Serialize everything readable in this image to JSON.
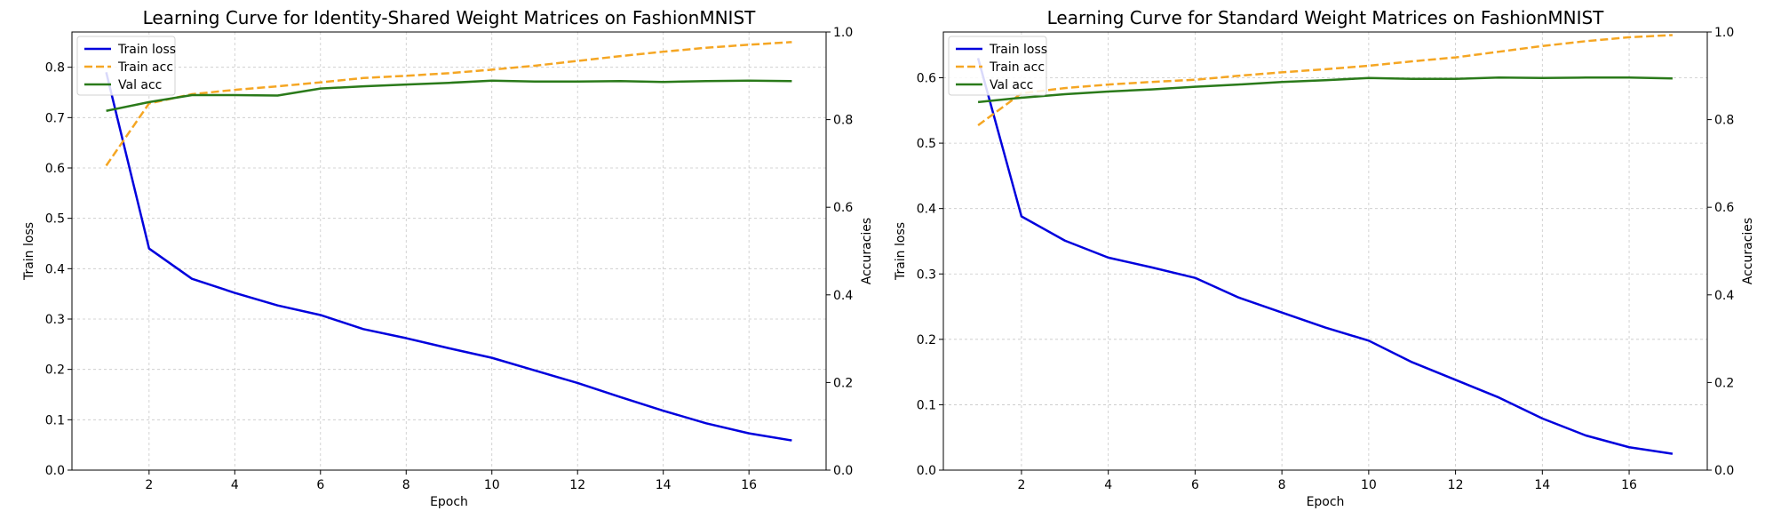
{
  "chart_data": [
    {
      "type": "line",
      "title": "Learning Curve for Identity-Shared Weight Matrices on FashionMNIST",
      "xlabel": "Epoch",
      "ylabel": "Train loss",
      "ylabel_right": "Accuracies",
      "xlim": [
        0.2,
        17.8
      ],
      "ylim": [
        0,
        0.87
      ],
      "ylim_right": [
        0,
        1.0
      ],
      "xticks": [
        2,
        4,
        6,
        8,
        10,
        12,
        14,
        16
      ],
      "yticks": [
        0.0,
        0.1,
        0.2,
        0.3,
        0.4,
        0.5,
        0.6,
        0.7,
        0.8
      ],
      "yticks_right": [
        0.0,
        0.2,
        0.4,
        0.6,
        0.8,
        1.0
      ],
      "grid": true,
      "legend": "top-left",
      "x": [
        1,
        2,
        3,
        4,
        5,
        6,
        7,
        8,
        9,
        10,
        11,
        12,
        13,
        14,
        15,
        16,
        17
      ],
      "series": [
        {
          "name": "Train loss",
          "axis": "left",
          "color": "#0000dd",
          "dash": "solid",
          "values": [
            0.79,
            0.44,
            0.38,
            0.352,
            0.327,
            0.308,
            0.28,
            0.262,
            0.242,
            0.223,
            0.198,
            0.173,
            0.145,
            0.118,
            0.093,
            0.073,
            0.059
          ]
        },
        {
          "name": "Train acc",
          "axis": "right",
          "color": "#f5a623",
          "dash": "dashed",
          "values": [
            0.695,
            0.837,
            0.858,
            0.868,
            0.876,
            0.885,
            0.895,
            0.9,
            0.906,
            0.914,
            0.923,
            0.934,
            0.945,
            0.955,
            0.964,
            0.971,
            0.977
          ]
        },
        {
          "name": "Val acc",
          "axis": "right",
          "color": "#2a7a1a",
          "dash": "solid",
          "values": [
            0.82,
            0.84,
            0.856,
            0.856,
            0.855,
            0.871,
            0.876,
            0.88,
            0.884,
            0.889,
            0.887,
            0.887,
            0.888,
            0.886,
            0.888,
            0.889,
            0.888
          ]
        }
      ]
    },
    {
      "type": "line",
      "title": "Learning Curve for Standard Weight Matrices on FashionMNIST",
      "xlabel": "Epoch",
      "ylabel": "Train loss",
      "ylabel_right": "Accuracies",
      "xlim": [
        0.2,
        17.8
      ],
      "ylim": [
        0,
        0.67
      ],
      "ylim_right": [
        0,
        1.0
      ],
      "xticks": [
        2,
        4,
        6,
        8,
        10,
        12,
        14,
        16
      ],
      "yticks": [
        0.0,
        0.1,
        0.2,
        0.3,
        0.4,
        0.5,
        0.6
      ],
      "yticks_right": [
        0.0,
        0.2,
        0.4,
        0.6,
        0.8,
        1.0
      ],
      "grid": true,
      "legend": "top-left",
      "x": [
        1,
        2,
        3,
        4,
        5,
        6,
        7,
        8,
        9,
        10,
        11,
        12,
        13,
        14,
        15,
        16,
        17
      ],
      "series": [
        {
          "name": "Train loss",
          "axis": "left",
          "color": "#0000dd",
          "dash": "solid",
          "values": [
            0.63,
            0.388,
            0.351,
            0.325,
            0.31,
            0.294,
            0.264,
            0.241,
            0.218,
            0.198,
            0.165,
            0.138,
            0.111,
            0.079,
            0.053,
            0.035,
            0.025
          ]
        },
        {
          "name": "Train acc",
          "axis": "right",
          "color": "#f5a623",
          "dash": "dashed",
          "values": [
            0.787,
            0.86,
            0.872,
            0.88,
            0.886,
            0.891,
            0.9,
            0.908,
            0.915,
            0.923,
            0.933,
            0.942,
            0.955,
            0.968,
            0.979,
            0.988,
            0.993
          ]
        },
        {
          "name": "Val acc",
          "axis": "right",
          "color": "#2a7a1a",
          "dash": "solid",
          "values": [
            0.84,
            0.85,
            0.858,
            0.864,
            0.869,
            0.875,
            0.88,
            0.886,
            0.89,
            0.895,
            0.893,
            0.893,
            0.896,
            0.895,
            0.896,
            0.896,
            0.894
          ]
        }
      ]
    }
  ]
}
